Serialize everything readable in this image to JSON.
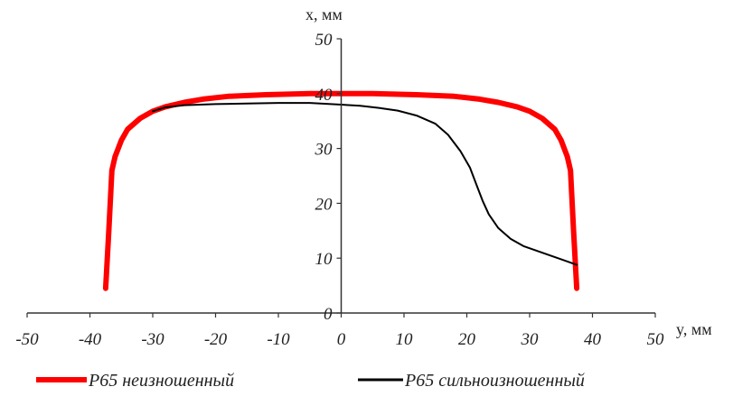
{
  "chart_data": {
    "type": "line",
    "xlabel": "y, мм",
    "ylabel": "x, мм",
    "xlim": [
      -50,
      50
    ],
    "ylim": [
      0,
      50
    ],
    "x_ticks": [
      "-50",
      "-40",
      "-30",
      "-20",
      "-10",
      "0",
      "10",
      "20",
      "30",
      "40",
      "50"
    ],
    "y_ticks": [
      "0",
      "10",
      "20",
      "30",
      "40",
      "50"
    ],
    "grid": false,
    "legend_position": "bottom",
    "series": [
      {
        "name": "Р65 неизношенный",
        "color": "#ff0000",
        "points": [
          [
            -37.5,
            4.5
          ],
          [
            -37,
            15
          ],
          [
            -36.5,
            26
          ],
          [
            -36,
            28.5
          ],
          [
            -35,
            31.5
          ],
          [
            -34,
            33.5
          ],
          [
            -32,
            35.5
          ],
          [
            -30,
            36.8
          ],
          [
            -28,
            37.6
          ],
          [
            -25,
            38.4
          ],
          [
            -22,
            39.0
          ],
          [
            -18,
            39.5
          ],
          [
            -12,
            39.8
          ],
          [
            -5,
            40.0
          ],
          [
            0,
            40.0
          ],
          [
            5,
            40.0
          ],
          [
            12,
            39.8
          ],
          [
            18,
            39.5
          ],
          [
            22,
            39.0
          ],
          [
            25,
            38.4
          ],
          [
            28,
            37.6
          ],
          [
            30,
            36.8
          ],
          [
            32,
            35.5
          ],
          [
            34,
            33.5
          ],
          [
            35,
            31.5
          ],
          [
            36,
            28.5
          ],
          [
            36.5,
            26
          ],
          [
            37,
            15
          ],
          [
            37.5,
            4.5
          ]
        ]
      },
      {
        "name": "Р65 сильноизношенный",
        "color": "#000000",
        "points": [
          [
            -30,
            36.8
          ],
          [
            -28,
            37.5
          ],
          [
            -25,
            37.9
          ],
          [
            -20,
            38.1
          ],
          [
            -15,
            38.2
          ],
          [
            -10,
            38.3
          ],
          [
            -5,
            38.3
          ],
          [
            0,
            38.0
          ],
          [
            3,
            37.8
          ],
          [
            6,
            37.4
          ],
          [
            9,
            36.9
          ],
          [
            12,
            36.0
          ],
          [
            15,
            34.5
          ],
          [
            17,
            32.5
          ],
          [
            19,
            29.5
          ],
          [
            20.5,
            26.5
          ],
          [
            21.5,
            23.5
          ],
          [
            22.5,
            20.5
          ],
          [
            23.5,
            18.0
          ],
          [
            25,
            15.5
          ],
          [
            27,
            13.5
          ],
          [
            29,
            12.2
          ],
          [
            31,
            11.4
          ],
          [
            33,
            10.6
          ],
          [
            35,
            9.8
          ],
          [
            37.5,
            8.8
          ]
        ]
      }
    ]
  }
}
